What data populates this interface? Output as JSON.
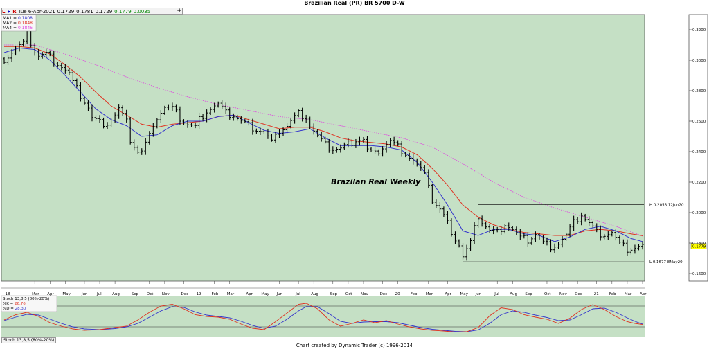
{
  "title": "Brazilian Real (PR) BR 5700 D-W",
  "info": {
    "flags": [
      "L",
      "F",
      "R"
    ],
    "date": "Tue 6-Apr-2021",
    "open": "0.1729",
    "high": "0.1781",
    "low": "0.1729",
    "close": "0.1779",
    "change": "0.0035"
  },
  "plus_label": "+",
  "footer": "Chart created by Dynamic Trader  (c) 1996-2014",
  "stoch_bottom_label": "Stoch 13,8,5 (80%-20%)",
  "colors": {
    "background": "#c5e0c5",
    "ma1": "#3333cc",
    "ma2": "#e03020",
    "ma4": "#e040e0",
    "bars": "#000000",
    "last_price_bg": "#ffff00",
    "stoch_k": "#e03020",
    "stoch_d": "#3333cc"
  },
  "chart_data": {
    "type": "ohlc",
    "title": "Brazilian Real (PR) BR 5700 D-W",
    "annotation": "Brazilan Real Weekly",
    "ma_legend": [
      {
        "label": "MA1 = ",
        "value": "0.1808",
        "color": "#3333cc"
      },
      {
        "label": "MA2 = ",
        "value": "0.1848",
        "color": "#e03020"
      },
      {
        "label": "MA4 = ",
        "value": "0.1846",
        "color": "#e040e0"
      }
    ],
    "ylim": [
      0.155,
      0.33
    ],
    "y_ticks": [
      "0.3200",
      "0.3000",
      "0.2800",
      "0.2600",
      "0.2400",
      "0.2200",
      "0.2000",
      "0.1800",
      "0.1600"
    ],
    "x_labels": [
      {
        "i": 1,
        "label": "18"
      },
      {
        "i": 8,
        "label": "Mar"
      },
      {
        "i": 12,
        "label": "Apr"
      },
      {
        "i": 16,
        "label": "May"
      },
      {
        "i": 21,
        "label": "Jun"
      },
      {
        "i": 25,
        "label": "Jul"
      },
      {
        "i": 29,
        "label": "Aug"
      },
      {
        "i": 34,
        "label": "Sep"
      },
      {
        "i": 38,
        "label": "Oct"
      },
      {
        "i": 42,
        "label": "Nov"
      },
      {
        "i": 47,
        "label": "Dec"
      },
      {
        "i": 51,
        "label": "19"
      },
      {
        "i": 55,
        "label": "Feb"
      },
      {
        "i": 59,
        "label": "Mar"
      },
      {
        "i": 64,
        "label": "Apr"
      },
      {
        "i": 68,
        "label": "May"
      },
      {
        "i": 72,
        "label": "Jun"
      },
      {
        "i": 77,
        "label": "Jul"
      },
      {
        "i": 81,
        "label": "Aug"
      },
      {
        "i": 86,
        "label": "Sep"
      },
      {
        "i": 90,
        "label": "Oct"
      },
      {
        "i": 94,
        "label": "Nov"
      },
      {
        "i": 99,
        "label": "Dec"
      },
      {
        "i": 103,
        "label": "20"
      },
      {
        "i": 107,
        "label": "Feb"
      },
      {
        "i": 111,
        "label": "Mar"
      },
      {
        "i": 116,
        "label": "Apr"
      },
      {
        "i": 120,
        "label": "May"
      },
      {
        "i": 124,
        "label": "Jun"
      },
      {
        "i": 129,
        "label": "Jul"
      },
      {
        "i": 133,
        "label": "Aug"
      },
      {
        "i": 137,
        "label": "Sep"
      },
      {
        "i": 142,
        "label": "Oct"
      },
      {
        "i": 146,
        "label": "Nov"
      },
      {
        "i": 150,
        "label": "Dec"
      },
      {
        "i": 155,
        "label": "21"
      },
      {
        "i": 159,
        "label": "Feb"
      },
      {
        "i": 163,
        "label": "Mar"
      },
      {
        "i": 167,
        "label": "Apr"
      }
    ],
    "high_mark": {
      "value": 0.2053,
      "label": "H 0.2053 12Jun20",
      "from_i": 124
    },
    "low_mark": {
      "value": 0.1677,
      "label": "L 0.1677 8May20",
      "from_i": 120
    },
    "last_price": {
      "value": 0.1779,
      "label": "0.1779"
    },
    "close_path": [
      [
        0,
        0.301
      ],
      [
        1,
        0.303
      ],
      [
        3,
        0.308
      ],
      [
        5,
        0.311
      ],
      [
        6,
        0.317
      ],
      [
        8,
        0.306
      ],
      [
        9,
        0.303
      ],
      [
        11,
        0.304
      ],
      [
        13,
        0.3
      ],
      [
        15,
        0.296
      ],
      [
        17,
        0.291
      ],
      [
        18,
        0.285
      ],
      [
        20,
        0.277
      ],
      [
        22,
        0.269
      ],
      [
        23,
        0.262
      ],
      [
        25,
        0.259
      ],
      [
        27,
        0.259
      ],
      [
        29,
        0.264
      ],
      [
        30,
        0.268
      ],
      [
        32,
        0.259
      ],
      [
        33,
        0.248
      ],
      [
        35,
        0.24
      ],
      [
        36,
        0.24
      ],
      [
        38,
        0.25
      ],
      [
        39,
        0.259
      ],
      [
        41,
        0.266
      ],
      [
        42,
        0.269
      ],
      [
        44,
        0.268
      ],
      [
        46,
        0.262
      ],
      [
        48,
        0.258
      ],
      [
        50,
        0.256
      ],
      [
        51,
        0.261
      ],
      [
        53,
        0.267
      ],
      [
        55,
        0.27
      ],
      [
        56,
        0.271
      ],
      [
        58,
        0.265
      ],
      [
        60,
        0.264
      ],
      [
        62,
        0.26
      ],
      [
        64,
        0.257
      ],
      [
        66,
        0.255
      ],
      [
        68,
        0.253
      ],
      [
        70,
        0.246
      ],
      [
        71,
        0.249
      ],
      [
        72,
        0.254
      ],
      [
        74,
        0.257
      ],
      [
        75,
        0.26
      ],
      [
        77,
        0.265
      ],
      [
        79,
        0.263
      ],
      [
        80,
        0.257
      ],
      [
        82,
        0.25
      ],
      [
        84,
        0.244
      ],
      [
        86,
        0.242
      ],
      [
        88,
        0.242
      ],
      [
        90,
        0.245
      ],
      [
        92,
        0.248
      ],
      [
        94,
        0.248
      ],
      [
        95,
        0.241
      ],
      [
        97,
        0.238
      ],
      [
        99,
        0.243
      ],
      [
        101,
        0.247
      ],
      [
        103,
        0.243
      ],
      [
        105,
        0.239
      ],
      [
        107,
        0.234
      ],
      [
        109,
        0.228
      ],
      [
        111,
        0.22
      ],
      [
        112,
        0.208
      ],
      [
        114,
        0.202
      ],
      [
        116,
        0.193
      ],
      [
        118,
        0.183
      ],
      [
        119,
        0.179
      ],
      [
        120,
        0.171
      ],
      [
        122,
        0.18
      ],
      [
        124,
        0.198
      ],
      [
        125,
        0.194
      ],
      [
        127,
        0.188
      ],
      [
        129,
        0.187
      ],
      [
        131,
        0.193
      ],
      [
        133,
        0.189
      ],
      [
        135,
        0.183
      ],
      [
        137,
        0.182
      ],
      [
        139,
        0.186
      ],
      [
        141,
        0.18
      ],
      [
        143,
        0.178
      ],
      [
        145,
        0.18
      ],
      [
        147,
        0.185
      ],
      [
        149,
        0.193
      ],
      [
        151,
        0.199
      ],
      [
        153,
        0.193
      ],
      [
        155,
        0.187
      ],
      [
        157,
        0.186
      ],
      [
        159,
        0.187
      ],
      [
        161,
        0.179
      ],
      [
        163,
        0.176
      ],
      [
        165,
        0.177
      ],
      [
        167,
        0.1779
      ]
    ],
    "ma1_path": [
      [
        0,
        0.305
      ],
      [
        4,
        0.308
      ],
      [
        8,
        0.307
      ],
      [
        12,
        0.3
      ],
      [
        16,
        0.29
      ],
      [
        20,
        0.279
      ],
      [
        24,
        0.268
      ],
      [
        28,
        0.261
      ],
      [
        32,
        0.257
      ],
      [
        36,
        0.25
      ],
      [
        40,
        0.251
      ],
      [
        44,
        0.257
      ],
      [
        48,
        0.26
      ],
      [
        52,
        0.26
      ],
      [
        56,
        0.263
      ],
      [
        60,
        0.264
      ],
      [
        64,
        0.259
      ],
      [
        68,
        0.254
      ],
      [
        72,
        0.252
      ],
      [
        76,
        0.253
      ],
      [
        80,
        0.255
      ],
      [
        84,
        0.249
      ],
      [
        88,
        0.244
      ],
      [
        92,
        0.244
      ],
      [
        96,
        0.244
      ],
      [
        100,
        0.243
      ],
      [
        104,
        0.241
      ],
      [
        108,
        0.233
      ],
      [
        112,
        0.22
      ],
      [
        116,
        0.205
      ],
      [
        120,
        0.188
      ],
      [
        124,
        0.185
      ],
      [
        128,
        0.189
      ],
      [
        132,
        0.189
      ],
      [
        136,
        0.186
      ],
      [
        140,
        0.185
      ],
      [
        144,
        0.181
      ],
      [
        148,
        0.184
      ],
      [
        152,
        0.189
      ],
      [
        156,
        0.191
      ],
      [
        160,
        0.188
      ],
      [
        164,
        0.183
      ],
      [
        167,
        0.181
      ]
    ],
    "ma2_path": [
      [
        0,
        0.309
      ],
      [
        4,
        0.309
      ],
      [
        8,
        0.308
      ],
      [
        12,
        0.304
      ],
      [
        16,
        0.297
      ],
      [
        20,
        0.289
      ],
      [
        24,
        0.279
      ],
      [
        28,
        0.27
      ],
      [
        32,
        0.264
      ],
      [
        36,
        0.258
      ],
      [
        40,
        0.256
      ],
      [
        44,
        0.258
      ],
      [
        48,
        0.259
      ],
      [
        52,
        0.26
      ],
      [
        56,
        0.263
      ],
      [
        60,
        0.264
      ],
      [
        64,
        0.261
      ],
      [
        68,
        0.258
      ],
      [
        72,
        0.255
      ],
      [
        76,
        0.256
      ],
      [
        80,
        0.256
      ],
      [
        84,
        0.253
      ],
      [
        88,
        0.249
      ],
      [
        92,
        0.247
      ],
      [
        96,
        0.246
      ],
      [
        100,
        0.245
      ],
      [
        104,
        0.243
      ],
      [
        108,
        0.238
      ],
      [
        112,
        0.229
      ],
      [
        116,
        0.218
      ],
      [
        120,
        0.205
      ],
      [
        124,
        0.197
      ],
      [
        128,
        0.192
      ],
      [
        132,
        0.189
      ],
      [
        136,
        0.187
      ],
      [
        140,
        0.186
      ],
      [
        144,
        0.185
      ],
      [
        148,
        0.185
      ],
      [
        152,
        0.188
      ],
      [
        156,
        0.189
      ],
      [
        160,
        0.188
      ],
      [
        164,
        0.186
      ],
      [
        167,
        0.1848
      ]
    ],
    "ma4_path": [
      [
        0,
        0.31
      ],
      [
        8,
        0.31
      ],
      [
        16,
        0.304
      ],
      [
        24,
        0.297
      ],
      [
        32,
        0.289
      ],
      [
        40,
        0.282
      ],
      [
        48,
        0.276
      ],
      [
        56,
        0.271
      ],
      [
        64,
        0.267
      ],
      [
        72,
        0.263
      ],
      [
        80,
        0.261
      ],
      [
        88,
        0.257
      ],
      [
        96,
        0.253
      ],
      [
        104,
        0.249
      ],
      [
        112,
        0.243
      ],
      [
        120,
        0.232
      ],
      [
        128,
        0.22
      ],
      [
        136,
        0.21
      ],
      [
        144,
        0.203
      ],
      [
        152,
        0.197
      ],
      [
        160,
        0.191
      ],
      [
        167,
        0.1846
      ]
    ],
    "stoch": {
      "legend_title": "Stoch 13,8,5 (80%-20%)",
      "k_label": "%K = ",
      "k_value": "26.76",
      "d_label": "%D = ",
      "d_value": "28.30",
      "ylim": [
        0,
        100
      ],
      "levels": [
        80,
        20
      ],
      "k_path": [
        [
          0,
          40
        ],
        [
          3,
          55
        ],
        [
          6,
          62
        ],
        [
          9,
          50
        ],
        [
          12,
          32
        ],
        [
          15,
          22
        ],
        [
          18,
          14
        ],
        [
          21,
          10
        ],
        [
          25,
          12
        ],
        [
          29,
          18
        ],
        [
          32,
          22
        ],
        [
          35,
          40
        ],
        [
          38,
          62
        ],
        [
          41,
          80
        ],
        [
          44,
          85
        ],
        [
          47,
          72
        ],
        [
          50,
          55
        ],
        [
          53,
          50
        ],
        [
          56,
          48
        ],
        [
          59,
          42
        ],
        [
          62,
          28
        ],
        [
          65,
          16
        ],
        [
          68,
          12
        ],
        [
          71,
          35
        ],
        [
          74,
          60
        ],
        [
          77,
          85
        ],
        [
          79,
          88
        ],
        [
          82,
          72
        ],
        [
          85,
          40
        ],
        [
          88,
          22
        ],
        [
          91,
          30
        ],
        [
          94,
          40
        ],
        [
          97,
          32
        ],
        [
          100,
          38
        ],
        [
          103,
          28
        ],
        [
          106,
          20
        ],
        [
          109,
          14
        ],
        [
          112,
          10
        ],
        [
          115,
          8
        ],
        [
          118,
          5
        ],
        [
          121,
          6
        ],
        [
          124,
          18
        ],
        [
          127,
          52
        ],
        [
          130,
          75
        ],
        [
          133,
          70
        ],
        [
          136,
          55
        ],
        [
          139,
          48
        ],
        [
          142,
          42
        ],
        [
          145,
          30
        ],
        [
          148,
          45
        ],
        [
          151,
          70
        ],
        [
          154,
          84
        ],
        [
          157,
          70
        ],
        [
          160,
          50
        ],
        [
          163,
          35
        ],
        [
          165,
          30
        ],
        [
          167,
          26.76
        ]
      ],
      "d_path": [
        [
          0,
          38
        ],
        [
          3,
          48
        ],
        [
          6,
          56
        ],
        [
          9,
          54
        ],
        [
          12,
          42
        ],
        [
          15,
          30
        ],
        [
          18,
          20
        ],
        [
          21,
          14
        ],
        [
          25,
          12
        ],
        [
          29,
          15
        ],
        [
          32,
          20
        ],
        [
          35,
          30
        ],
        [
          38,
          48
        ],
        [
          41,
          66
        ],
        [
          44,
          78
        ],
        [
          47,
          76
        ],
        [
          50,
          63
        ],
        [
          53,
          54
        ],
        [
          56,
          50
        ],
        [
          59,
          46
        ],
        [
          62,
          36
        ],
        [
          65,
          24
        ],
        [
          68,
          16
        ],
        [
          71,
          22
        ],
        [
          74,
          42
        ],
        [
          77,
          66
        ],
        [
          79,
          78
        ],
        [
          82,
          78
        ],
        [
          85,
          58
        ],
        [
          88,
          36
        ],
        [
          91,
          30
        ],
        [
          94,
          34
        ],
        [
          97,
          35
        ],
        [
          100,
          35
        ],
        [
          103,
          32
        ],
        [
          106,
          25
        ],
        [
          109,
          18
        ],
        [
          112,
          13
        ],
        [
          115,
          10
        ],
        [
          118,
          7
        ],
        [
          121,
          6
        ],
        [
          124,
          11
        ],
        [
          127,
          30
        ],
        [
          130,
          55
        ],
        [
          133,
          66
        ],
        [
          136,
          62
        ],
        [
          139,
          54
        ],
        [
          142,
          47
        ],
        [
          145,
          38
        ],
        [
          148,
          40
        ],
        [
          151,
          55
        ],
        [
          154,
          72
        ],
        [
          157,
          74
        ],
        [
          160,
          62
        ],
        [
          163,
          46
        ],
        [
          165,
          36
        ],
        [
          167,
          28.3
        ]
      ]
    }
  }
}
